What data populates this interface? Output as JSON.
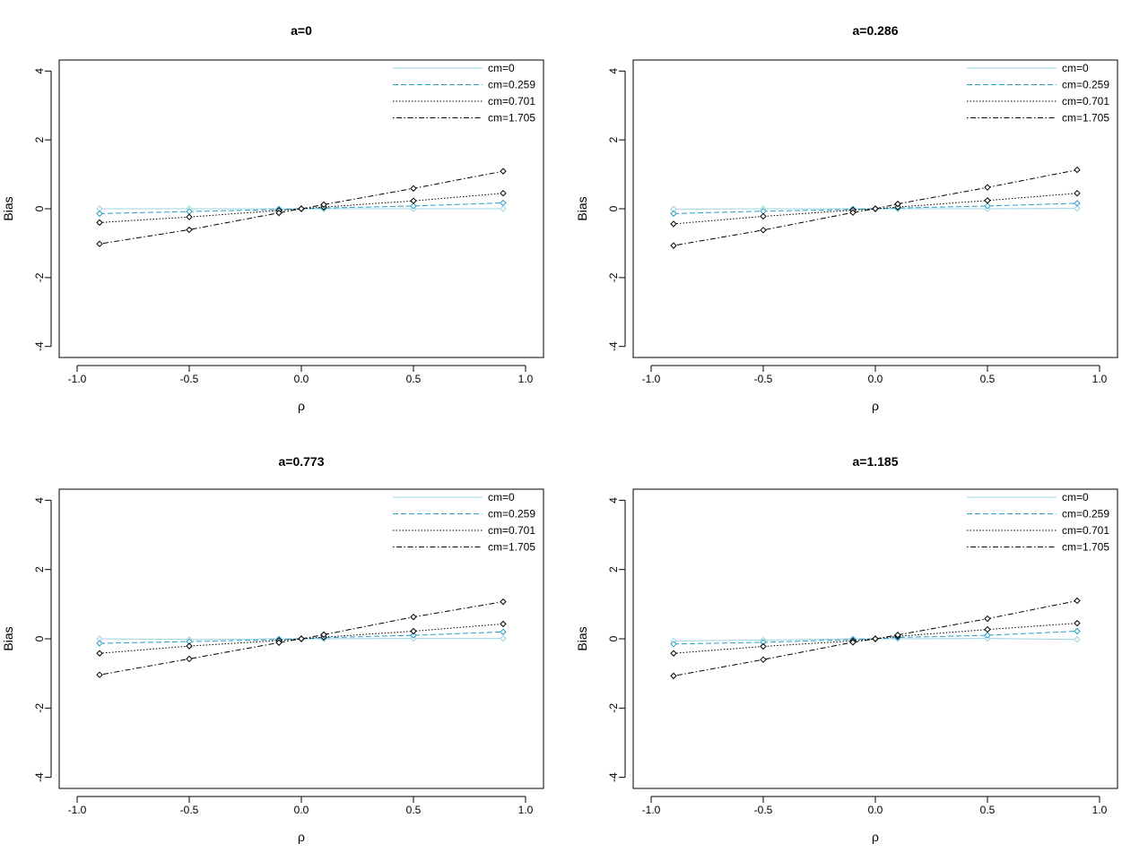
{
  "chart_data": [
    {
      "type": "line",
      "title": "a=0",
      "xlabel": "ρ",
      "ylabel": "Bias",
      "xlim": [
        -1.0,
        1.0
      ],
      "ylim": [
        -4,
        4
      ],
      "xticks": [
        "-1.0",
        "-0.5",
        "0.0",
        "0.5",
        "1.0"
      ],
      "yticks": [
        "-4",
        "-2",
        "0",
        "2",
        "4"
      ],
      "legend_position": "top-right",
      "x": [
        -0.9,
        -0.5,
        -0.1,
        0.0,
        0.1,
        0.5,
        0.9
      ],
      "series": [
        {
          "name": "cm=0",
          "color": "#9ed3e0",
          "dash": "solid",
          "values": [
            0.0,
            0.0,
            0.0,
            0.0,
            0.0,
            0.0,
            0.0
          ]
        },
        {
          "name": "cm=0.259",
          "color": "#2a9fc7",
          "dash": "dashed",
          "values": [
            -0.14,
            -0.08,
            -0.02,
            0.0,
            0.02,
            0.08,
            0.17
          ]
        },
        {
          "name": "cm=0.701",
          "color": "#000000",
          "dash": "dotted",
          "values": [
            -0.4,
            -0.24,
            -0.05,
            0.0,
            0.05,
            0.23,
            0.45
          ]
        },
        {
          "name": "cm=1.705",
          "color": "#000000",
          "dash": "dotdash",
          "values": [
            -1.02,
            -0.61,
            -0.12,
            0.0,
            0.12,
            0.59,
            1.09
          ]
        }
      ]
    },
    {
      "type": "line",
      "title": "a=0.286",
      "xlabel": "ρ",
      "ylabel": "Bias",
      "xlim": [
        -1.0,
        1.0
      ],
      "ylim": [
        -4,
        4
      ],
      "xticks": [
        "-1.0",
        "-0.5",
        "0.0",
        "0.5",
        "1.0"
      ],
      "yticks": [
        "-4",
        "-2",
        "0",
        "2",
        "4"
      ],
      "legend_position": "top-right",
      "x": [
        -0.9,
        -0.5,
        -0.1,
        0.0,
        0.1,
        0.5,
        0.9
      ],
      "series": [
        {
          "name": "cm=0",
          "color": "#9ed3e0",
          "dash": "solid",
          "values": [
            -0.01,
            0.0,
            0.0,
            0.0,
            0.0,
            0.0,
            0.01
          ]
        },
        {
          "name": "cm=0.259",
          "color": "#2a9fc7",
          "dash": "dashed",
          "values": [
            -0.14,
            -0.07,
            -0.02,
            0.0,
            0.02,
            0.08,
            0.16
          ]
        },
        {
          "name": "cm=0.701",
          "color": "#000000",
          "dash": "dotted",
          "values": [
            -0.44,
            -0.22,
            -0.04,
            0.0,
            0.05,
            0.24,
            0.45
          ]
        },
        {
          "name": "cm=1.705",
          "color": "#000000",
          "dash": "dotdash",
          "values": [
            -1.07,
            -0.62,
            -0.11,
            0.0,
            0.14,
            0.62,
            1.13
          ]
        }
      ]
    },
    {
      "type": "line",
      "title": "a=0.773",
      "xlabel": "ρ",
      "ylabel": "Bias",
      "xlim": [
        -1.0,
        1.0
      ],
      "ylim": [
        -4,
        4
      ],
      "xticks": [
        "-1.0",
        "-0.5",
        "0.0",
        "0.5",
        "1.0"
      ],
      "yticks": [
        "-4",
        "-2",
        "0",
        "2",
        "4"
      ],
      "legend_position": "top-right",
      "x": [
        -0.9,
        -0.5,
        -0.1,
        0.0,
        0.1,
        0.5,
        0.9
      ],
      "series": [
        {
          "name": "cm=0",
          "color": "#9ed3e0",
          "dash": "solid",
          "values": [
            0.0,
            -0.02,
            0.0,
            0.0,
            0.0,
            0.01,
            0.01
          ]
        },
        {
          "name": "cm=0.259",
          "color": "#2a9fc7",
          "dash": "dashed",
          "values": [
            -0.13,
            -0.08,
            -0.02,
            0.0,
            0.03,
            0.1,
            0.2
          ]
        },
        {
          "name": "cm=0.701",
          "color": "#000000",
          "dash": "dotted",
          "values": [
            -0.42,
            -0.21,
            -0.05,
            0.0,
            0.05,
            0.22,
            0.43
          ]
        },
        {
          "name": "cm=1.705",
          "color": "#000000",
          "dash": "dotdash",
          "values": [
            -1.04,
            -0.58,
            -0.11,
            0.0,
            0.12,
            0.63,
            1.07
          ]
        }
      ]
    },
    {
      "type": "line",
      "title": "a=1.185",
      "xlabel": "ρ",
      "ylabel": "Bias",
      "xlim": [
        -1.0,
        1.0
      ],
      "ylim": [
        -4,
        4
      ],
      "xticks": [
        "-1.0",
        "-0.5",
        "0.0",
        "0.5",
        "1.0"
      ],
      "yticks": [
        "-4",
        "-2",
        "0",
        "2",
        "4"
      ],
      "legend_position": "top-right",
      "x": [
        -0.9,
        -0.5,
        -0.1,
        0.0,
        0.1,
        0.5,
        0.9
      ],
      "series": [
        {
          "name": "cm=0",
          "color": "#9ed3e0",
          "dash": "solid",
          "values": [
            -0.06,
            -0.04,
            0.0,
            0.0,
            0.0,
            0.01,
            -0.02
          ]
        },
        {
          "name": "cm=0.259",
          "color": "#2a9fc7",
          "dash": "dashed",
          "values": [
            -0.15,
            -0.1,
            -0.02,
            0.0,
            0.04,
            0.1,
            0.22
          ]
        },
        {
          "name": "cm=0.701",
          "color": "#000000",
          "dash": "dotted",
          "values": [
            -0.42,
            -0.22,
            -0.06,
            0.0,
            0.07,
            0.27,
            0.45
          ]
        },
        {
          "name": "cm=1.705",
          "color": "#000000",
          "dash": "dotdash",
          "values": [
            -1.07,
            -0.6,
            -0.1,
            0.0,
            0.11,
            0.58,
            1.1
          ]
        }
      ]
    }
  ]
}
